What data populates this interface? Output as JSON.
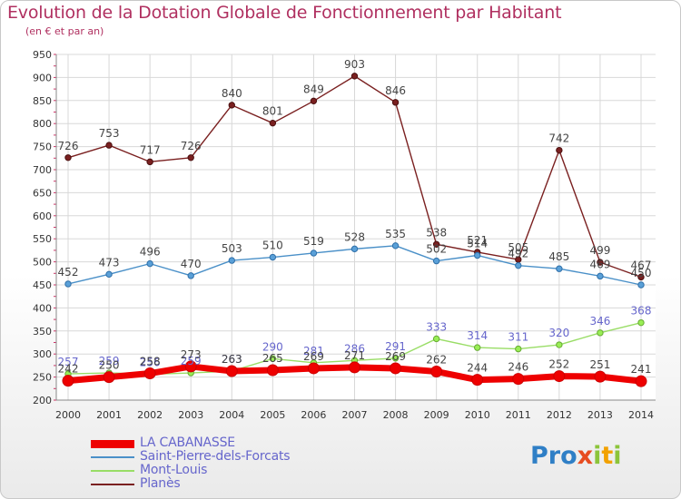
{
  "title": "Evolution de la Dotation Globale de Fonctionnement par Habitant",
  "subtitle": "(en € et par an)",
  "logo": {
    "p1": "Pro",
    "x": "x",
    "i1": "i",
    "t": "t",
    "i2": "i"
  },
  "chart_data": {
    "type": "line",
    "title": "Evolution de la Dotation Globale de Fonctionnement par Habitant",
    "subtitle": "(en € et par an)",
    "x": [
      "2000",
      "2001",
      "2002",
      "2003",
      "2004",
      "2005",
      "2006",
      "2007",
      "2008",
      "2009",
      "2010",
      "2011",
      "2012",
      "2013",
      "2014"
    ],
    "ylim": [
      200,
      950
    ],
    "yticks": [
      200,
      250,
      300,
      350,
      400,
      450,
      500,
      550,
      600,
      650,
      700,
      750,
      800,
      850,
      900,
      950
    ],
    "grid": true,
    "legend_position": "bottom-left",
    "series": [
      {
        "name": "LA CABANASSE",
        "color": "#ee0000",
        "values": [
          242,
          250,
          258,
          273,
          263,
          265,
          269,
          271,
          269,
          262,
          244,
          246,
          252,
          251,
          241
        ]
      },
      {
        "name": "Saint-Pierre-dels-Forcats",
        "color": "#4a90c8",
        "values": [
          452,
          473,
          496,
          470,
          503,
          510,
          519,
          528,
          535,
          502,
          514,
          492,
          485,
          469,
          450
        ]
      },
      {
        "name": "Mont-Louis",
        "color": "#99dd66",
        "values": [
          257,
          259,
          256,
          259,
          263,
          290,
          281,
          286,
          291,
          333,
          314,
          311,
          320,
          346,
          368
        ]
      },
      {
        "name": "Planès",
        "color": "#7a2020",
        "values": [
          726,
          753,
          717,
          726,
          840,
          801,
          849,
          903,
          846,
          538,
          521,
          505,
          742,
          499,
          467
        ]
      }
    ],
    "labels": [
      {
        "series": 0,
        "values": [
          242,
          250,
          258,
          273,
          263,
          265,
          269,
          271,
          269,
          262,
          244,
          246,
          252,
          251,
          241
        ]
      },
      {
        "series": 1,
        "values": [
          452,
          473,
          496,
          470,
          503,
          510,
          519,
          528,
          535,
          502,
          514,
          492,
          485,
          469,
          450
        ]
      },
      {
        "series": 2,
        "values": [
          257,
          259,
          256,
          259,
          263,
          290,
          281,
          286,
          291,
          333,
          314,
          311,
          320,
          346,
          368
        ]
      },
      {
        "series": 3,
        "values": [
          726,
          753,
          717,
          726,
          840,
          801,
          849,
          903,
          846,
          538,
          521,
          505,
          742,
          499,
          467
        ]
      }
    ]
  }
}
